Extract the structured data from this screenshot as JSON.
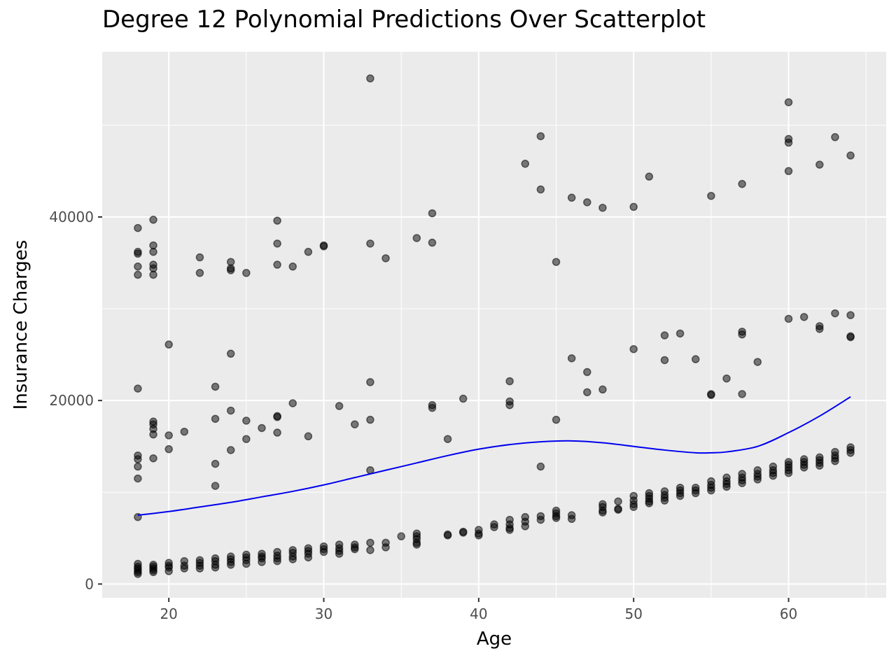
{
  "chart_data": {
    "type": "scatter",
    "title": "Degree 12 Polynomial Predictions Over Scatterplot",
    "xlabel": "Age",
    "ylabel": "Insurance Charges",
    "xlim": [
      15.7,
      66.3
    ],
    "ylim": [
      -1500,
      58000
    ],
    "x_ticks": [
      20,
      30,
      40,
      50,
      60
    ],
    "y_ticks": [
      0,
      20000,
      40000
    ],
    "grid": true,
    "colors": {
      "panel": "#ebebeb",
      "grid": "#ffffff",
      "points": "#000000",
      "line": "#0000ee"
    },
    "series": [
      {
        "type": "scatter",
        "points": [
          [
            18,
            38800
          ],
          [
            18,
            36200
          ],
          [
            18,
            36000
          ],
          [
            18,
            34600
          ],
          [
            18,
            33700
          ],
          [
            18,
            21300
          ],
          [
            18,
            14000
          ],
          [
            18,
            13600
          ],
          [
            18,
            12800
          ],
          [
            18,
            11500
          ],
          [
            18,
            7300
          ],
          [
            19,
            39700
          ],
          [
            19,
            36900
          ],
          [
            19,
            36200
          ],
          [
            19,
            34800
          ],
          [
            19,
            34400
          ],
          [
            19,
            33700
          ],
          [
            19,
            17700
          ],
          [
            19,
            17400
          ],
          [
            19,
            16900
          ],
          [
            19,
            16300
          ],
          [
            19,
            13700
          ],
          [
            20,
            26100
          ],
          [
            20,
            16200
          ],
          [
            20,
            14700
          ],
          [
            21,
            16600
          ],
          [
            22,
            35600
          ],
          [
            22,
            33900
          ],
          [
            23,
            21500
          ],
          [
            23,
            18000
          ],
          [
            23,
            13100
          ],
          [
            23,
            10700
          ],
          [
            24,
            35100
          ],
          [
            24,
            34400
          ],
          [
            24,
            34200
          ],
          [
            24,
            25100
          ],
          [
            24,
            18900
          ],
          [
            24,
            14600
          ],
          [
            25,
            33900
          ],
          [
            25,
            17800
          ],
          [
            25,
            15800
          ],
          [
            26,
            17000
          ],
          [
            27,
            39600
          ],
          [
            27,
            37100
          ],
          [
            27,
            34800
          ],
          [
            27,
            18200
          ],
          [
            27,
            18300
          ],
          [
            27,
            16500
          ],
          [
            28,
            34600
          ],
          [
            28,
            19700
          ],
          [
            29,
            36200
          ],
          [
            29,
            16100
          ],
          [
            30,
            36900
          ],
          [
            30,
            36800
          ],
          [
            31,
            19400
          ],
          [
            32,
            17400
          ],
          [
            33,
            55100
          ],
          [
            33,
            37100
          ],
          [
            33,
            22000
          ],
          [
            33,
            17900
          ],
          [
            33,
            12400
          ],
          [
            34,
            35500
          ],
          [
            36,
            37700
          ],
          [
            37,
            40400
          ],
          [
            37,
            37200
          ],
          [
            37,
            19500
          ],
          [
            37,
            19200
          ],
          [
            38,
            15800
          ],
          [
            39,
            20200
          ],
          [
            42,
            22100
          ],
          [
            42,
            19900
          ],
          [
            42,
            19500
          ],
          [
            43,
            45800
          ],
          [
            44,
            48800
          ],
          [
            44,
            43000
          ],
          [
            44,
            12800
          ],
          [
            45,
            35100
          ],
          [
            45,
            17900
          ],
          [
            46,
            42100
          ],
          [
            46,
            24600
          ],
          [
            47,
            41600
          ],
          [
            47,
            23100
          ],
          [
            47,
            20900
          ],
          [
            48,
            41000
          ],
          [
            48,
            21200
          ],
          [
            50,
            41100
          ],
          [
            50,
            25600
          ],
          [
            51,
            44400
          ],
          [
            52,
            27100
          ],
          [
            52,
            24400
          ],
          [
            53,
            27300
          ],
          [
            54,
            24500
          ],
          [
            55,
            42300
          ],
          [
            55,
            20700
          ],
          [
            55,
            20600
          ],
          [
            56,
            22400
          ],
          [
            57,
            43600
          ],
          [
            57,
            27500
          ],
          [
            57,
            27200
          ],
          [
            57,
            20700
          ],
          [
            58,
            24200
          ],
          [
            60,
            52500
          ],
          [
            60,
            48500
          ],
          [
            60,
            48100
          ],
          [
            60,
            45000
          ],
          [
            60,
            28900
          ],
          [
            61,
            29100
          ],
          [
            62,
            45700
          ],
          [
            62,
            28100
          ],
          [
            62,
            27800
          ],
          [
            63,
            48700
          ],
          [
            63,
            29500
          ],
          [
            64,
            46700
          ],
          [
            64,
            29300
          ],
          [
            64,
            27000
          ],
          [
            64,
            26900
          ],
          [
            18,
            2200
          ],
          [
            18,
            1900
          ],
          [
            18,
            1700
          ],
          [
            18,
            1500
          ],
          [
            18,
            1300
          ],
          [
            18,
            1100
          ],
          [
            19,
            2100
          ],
          [
            19,
            1900
          ],
          [
            19,
            1700
          ],
          [
            19,
            1500
          ],
          [
            19,
            1300
          ],
          [
            20,
            2300
          ],
          [
            20,
            2000
          ],
          [
            20,
            1800
          ],
          [
            20,
            1400
          ],
          [
            21,
            2500
          ],
          [
            21,
            2000
          ],
          [
            21,
            1700
          ],
          [
            22,
            2600
          ],
          [
            22,
            2300
          ],
          [
            22,
            2000
          ],
          [
            22,
            1700
          ],
          [
            23,
            2800
          ],
          [
            23,
            2500
          ],
          [
            23,
            2100
          ],
          [
            23,
            1800
          ],
          [
            24,
            3000
          ],
          [
            24,
            2700
          ],
          [
            24,
            2400
          ],
          [
            24,
            2100
          ],
          [
            25,
            3200
          ],
          [
            25,
            2900
          ],
          [
            25,
            2600
          ],
          [
            25,
            2200
          ],
          [
            26,
            3300
          ],
          [
            26,
            3000
          ],
          [
            26,
            2800
          ],
          [
            26,
            2400
          ],
          [
            27,
            3500
          ],
          [
            27,
            3100
          ],
          [
            27,
            2800
          ],
          [
            27,
            2500
          ],
          [
            28,
            3700
          ],
          [
            28,
            3400
          ],
          [
            28,
            3000
          ],
          [
            28,
            2700
          ],
          [
            29,
            3900
          ],
          [
            29,
            3600
          ],
          [
            29,
            3300
          ],
          [
            29,
            2900
          ],
          [
            30,
            4100
          ],
          [
            30,
            3800
          ],
          [
            30,
            3500
          ],
          [
            31,
            4300
          ],
          [
            31,
            3900
          ],
          [
            31,
            3600
          ],
          [
            31,
            3300
          ],
          [
            32,
            4300
          ],
          [
            32,
            4000
          ],
          [
            32,
            3800
          ],
          [
            33,
            4500
          ],
          [
            33,
            3700
          ],
          [
            34,
            4500
          ],
          [
            34,
            4000
          ],
          [
            35,
            5200
          ],
          [
            36,
            5500
          ],
          [
            36,
            5200
          ],
          [
            36,
            4900
          ],
          [
            36,
            4500
          ],
          [
            36,
            4300
          ],
          [
            38,
            5400
          ],
          [
            38,
            5300
          ],
          [
            39,
            5700
          ],
          [
            39,
            5600
          ],
          [
            40,
            5900
          ],
          [
            40,
            5500
          ],
          [
            40,
            5300
          ],
          [
            41,
            6500
          ],
          [
            41,
            6200
          ],
          [
            42,
            7000
          ],
          [
            42,
            6500
          ],
          [
            42,
            6100
          ],
          [
            42,
            5900
          ],
          [
            43,
            7300
          ],
          [
            43,
            6800
          ],
          [
            43,
            6300
          ],
          [
            44,
            7400
          ],
          [
            44,
            7000
          ],
          [
            45,
            8000
          ],
          [
            45,
            7700
          ],
          [
            45,
            7400
          ],
          [
            45,
            7200
          ],
          [
            46,
            7500
          ],
          [
            46,
            7100
          ],
          [
            48,
            8700
          ],
          [
            48,
            8400
          ],
          [
            48,
            8000
          ],
          [
            48,
            7800
          ],
          [
            49,
            9000
          ],
          [
            49,
            8200
          ],
          [
            49,
            8100
          ],
          [
            50,
            9600
          ],
          [
            50,
            9100
          ],
          [
            50,
            8700
          ],
          [
            50,
            8400
          ],
          [
            51,
            9900
          ],
          [
            51,
            9600
          ],
          [
            51,
            9300
          ],
          [
            51,
            9000
          ],
          [
            51,
            8800
          ],
          [
            52,
            10100
          ],
          [
            52,
            9700
          ],
          [
            52,
            9400
          ],
          [
            52,
            9100
          ],
          [
            53,
            10500
          ],
          [
            53,
            10200
          ],
          [
            53,
            9900
          ],
          [
            53,
            9600
          ],
          [
            54,
            10500
          ],
          [
            54,
            10200
          ],
          [
            54,
            9900
          ],
          [
            55,
            11200
          ],
          [
            55,
            10800
          ],
          [
            55,
            10500
          ],
          [
            55,
            10200
          ],
          [
            56,
            11600
          ],
          [
            56,
            11200
          ],
          [
            56,
            10900
          ],
          [
            56,
            10600
          ],
          [
            57,
            12000
          ],
          [
            57,
            11600
          ],
          [
            57,
            11300
          ],
          [
            57,
            11000
          ],
          [
            58,
            12400
          ],
          [
            58,
            12000
          ],
          [
            58,
            11700
          ],
          [
            58,
            11400
          ],
          [
            59,
            12800
          ],
          [
            59,
            12400
          ],
          [
            59,
            12100
          ],
          [
            59,
            11800
          ],
          [
            60,
            13300
          ],
          [
            60,
            13000
          ],
          [
            60,
            12700
          ],
          [
            60,
            12400
          ],
          [
            60,
            12100
          ],
          [
            61,
            13600
          ],
          [
            61,
            13300
          ],
          [
            61,
            13000
          ],
          [
            61,
            12700
          ],
          [
            62,
            13800
          ],
          [
            62,
            13500
          ],
          [
            62,
            13200
          ],
          [
            62,
            12900
          ],
          [
            63,
            14400
          ],
          [
            63,
            14000
          ],
          [
            63,
            13700
          ],
          [
            63,
            13400
          ],
          [
            64,
            14900
          ],
          [
            64,
            14600
          ],
          [
            64,
            14300
          ]
        ]
      },
      {
        "type": "line",
        "points": [
          [
            18,
            7500
          ],
          [
            20,
            7900
          ],
          [
            22,
            8400
          ],
          [
            24,
            8900
          ],
          [
            26,
            9500
          ],
          [
            28,
            10100
          ],
          [
            30,
            10800
          ],
          [
            32,
            11600
          ],
          [
            34,
            12400
          ],
          [
            36,
            13200
          ],
          [
            38,
            14000
          ],
          [
            40,
            14700
          ],
          [
            42,
            15200
          ],
          [
            44,
            15500
          ],
          [
            46,
            15600
          ],
          [
            48,
            15400
          ],
          [
            50,
            15000
          ],
          [
            52,
            14600
          ],
          [
            54,
            14300
          ],
          [
            55,
            14300
          ],
          [
            56,
            14400
          ],
          [
            58,
            15000
          ],
          [
            60,
            16500
          ],
          [
            62,
            18300
          ],
          [
            64,
            20400
          ]
        ]
      }
    ]
  }
}
